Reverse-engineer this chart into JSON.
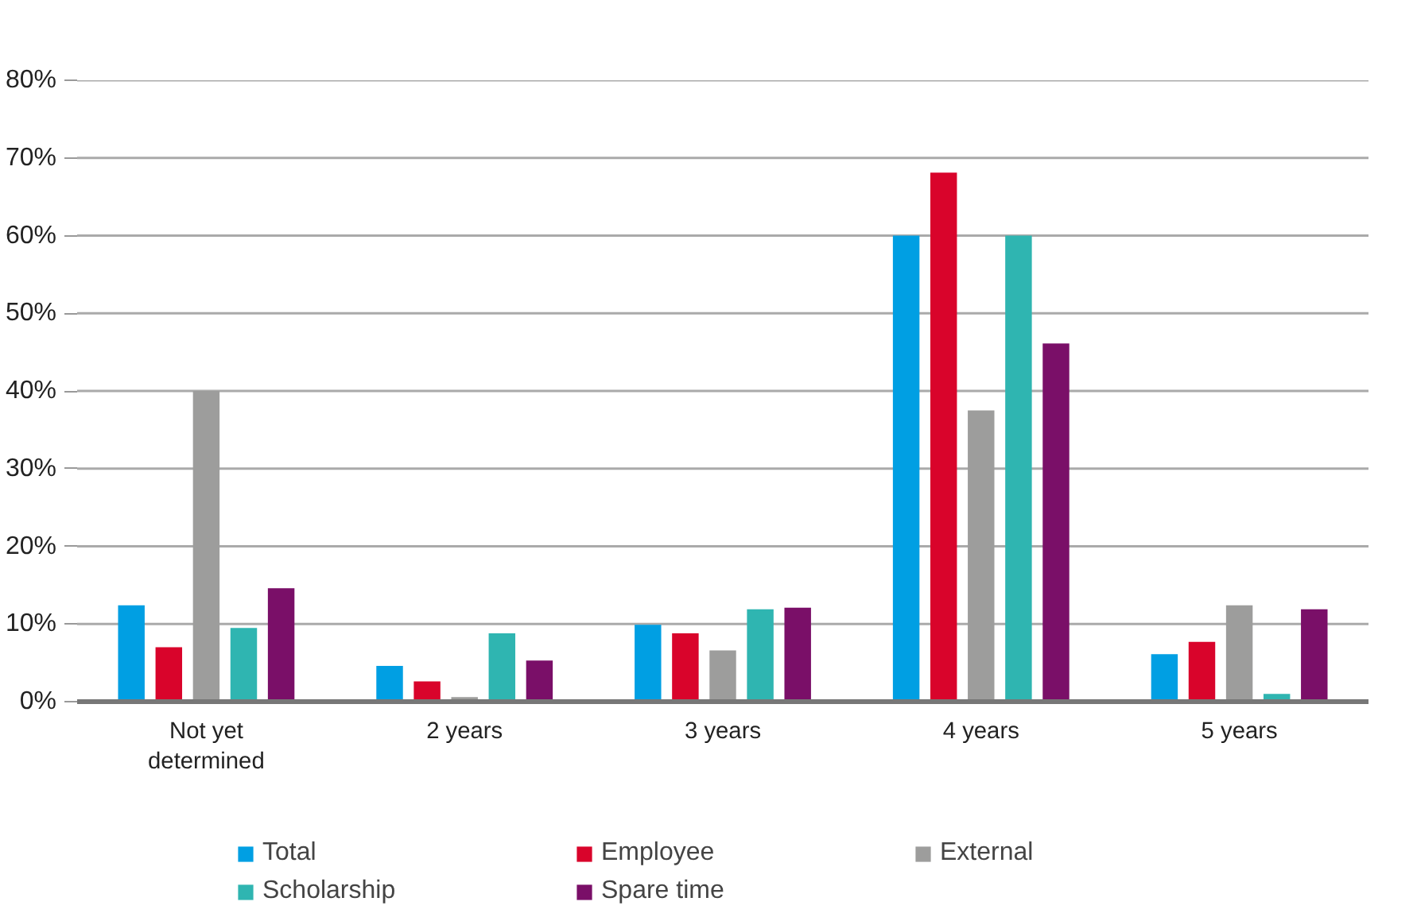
{
  "chart_data": {
    "type": "bar",
    "categories": [
      "Not yet\ndetermined",
      "2 years",
      "3 years",
      "4 years",
      "5 years"
    ],
    "series": [
      {
        "name": "Total",
        "color": "#009fe3",
        "values": [
          12.4,
          4.6,
          9.9,
          60,
          6.1
        ]
      },
      {
        "name": "Employee",
        "color": "#d9042b",
        "values": [
          7.0,
          2.6,
          8.8,
          68.1,
          7.7
        ]
      },
      {
        "name": "External",
        "color": "#9d9d9c",
        "values": [
          40,
          0.6,
          6.6,
          37.5,
          12.4
        ]
      },
      {
        "name": "Scholarship",
        "color": "#2fb5b1",
        "values": [
          9.5,
          8.8,
          11.9,
          60,
          1.0
        ]
      },
      {
        "name": "Spare time",
        "color": "#7a0f68",
        "values": [
          14.6,
          5.3,
          12.1,
          46.1,
          11.9
        ]
      }
    ],
    "ylim": [
      0,
      80
    ],
    "yticks": [
      {
        "value": 0,
        "label": "0%"
      },
      {
        "value": 10,
        "label": "10%"
      },
      {
        "value": 20,
        "label": "20%"
      },
      {
        "value": 30,
        "label": "30%"
      },
      {
        "value": 40,
        "label": "40%"
      },
      {
        "value": 50,
        "label": "50%"
      },
      {
        "value": 60,
        "label": "60%"
      },
      {
        "value": 70,
        "label": "70%"
      },
      {
        "value": 80,
        "label": "80%"
      }
    ],
    "grid": "y",
    "legend": "bottom"
  }
}
